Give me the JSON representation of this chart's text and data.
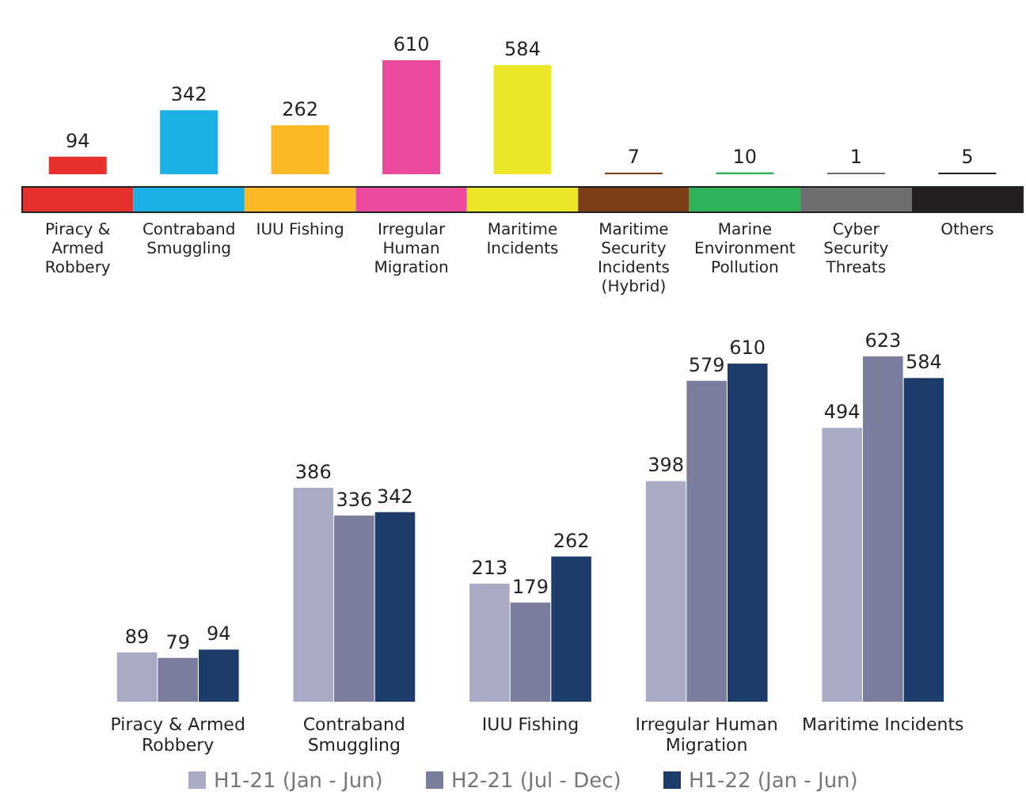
{
  "chart_data": [
    {
      "type": "bar",
      "categories": [
        "Piracy & Armed Robbery",
        "Contraband Smuggling",
        "IUU Fishing",
        "Irregular Human Migration",
        "Maritime Incidents",
        "Maritime Security Incidents (Hybrid)",
        "Marine Environment Pollution",
        "Cyber Security Threats",
        "Others"
      ],
      "values": [
        94,
        342,
        262,
        610,
        584,
        7,
        10,
        1,
        5
      ],
      "colors": [
        "#e8312f",
        "#1cb0e6",
        "#fbb928",
        "#ec4a9c",
        "#ece629",
        "#7a3f17",
        "#2fb35a",
        "#6d6e70",
        "#231f20"
      ],
      "data_labels": true
    },
    {
      "type": "bar",
      "categories": [
        "Piracy & Armed Robbery",
        "Contraband Smuggling",
        "IUU Fishing",
        "Irregular Human Migration",
        "Maritime Incidents"
      ],
      "series": [
        {
          "name": "H1-21 (Jan - Jun)",
          "color": "#a9aac4",
          "values": [
            89,
            386,
            213,
            398,
            494
          ]
        },
        {
          "name": "H2-21 (Jul - Dec)",
          "color": "#7b7d9d",
          "values": [
            79,
            336,
            179,
            579,
            623
          ]
        },
        {
          "name": "H1-22 (Jan - Jun)",
          "color": "#1d3c6a",
          "values": [
            94,
            342,
            262,
            610,
            584
          ]
        }
      ],
      "data_labels": true,
      "legend": "bottom"
    }
  ]
}
